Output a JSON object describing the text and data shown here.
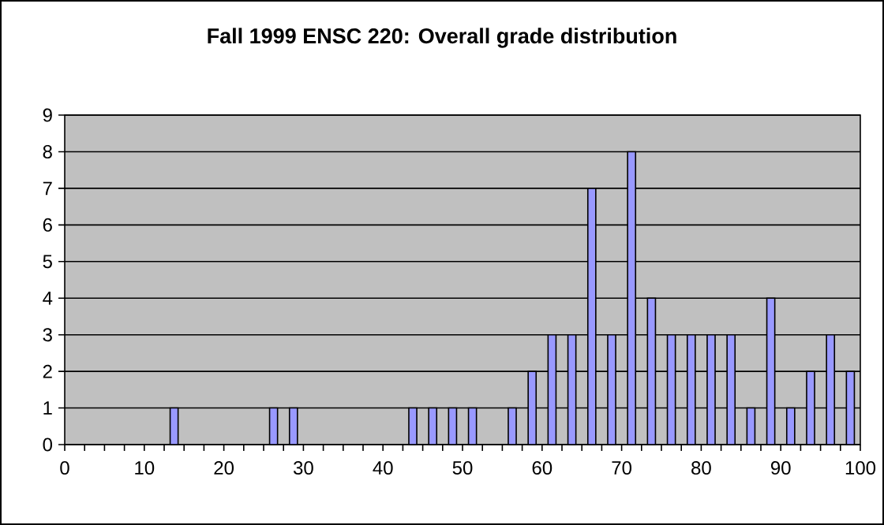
{
  "chart_data": {
    "type": "histogram",
    "title": "Fall 1999 ENSC 220: Overall grade distribution",
    "bins": [
      0,
      2.5,
      5,
      7.5,
      10,
      12.5,
      15,
      17.5,
      20,
      22.5,
      25,
      27.5,
      30,
      32.5,
      35,
      37.5,
      40,
      42.5,
      45,
      47.5,
      50,
      52.5,
      55,
      57.5,
      60,
      62.5,
      65,
      67.5,
      70,
      72.5,
      75,
      77.5,
      80,
      82.5,
      85,
      87.5,
      90,
      92.5,
      95,
      97.5,
      100
    ],
    "values": [
      0,
      0,
      0,
      0,
      0,
      1,
      0,
      0,
      0,
      0,
      1,
      1,
      0,
      0,
      0,
      0,
      0,
      1,
      1,
      1,
      1,
      0,
      1,
      2,
      3,
      3,
      7,
      3,
      8,
      4,
      3,
      3,
      3,
      3,
      1,
      4,
      1,
      2,
      3,
      2
    ],
    "color": "#9999ff",
    "xlim": [
      0,
      100
    ],
    "xticks": [
      0,
      {
        "value": 2.5,
        "label": null
      },
      {
        "value": 5,
        "label": null
      },
      {
        "value": 7.5,
        "label": null
      },
      10,
      {
        "value": 12.5,
        "label": null
      },
      {
        "value": 15,
        "label": null
      },
      {
        "value": 17.5,
        "label": null
      },
      20,
      {
        "value": 22.5,
        "label": null
      },
      {
        "value": 25,
        "label": null
      },
      {
        "value": 27.5,
        "label": null
      },
      30,
      {
        "value": 32.5,
        "label": null
      },
      {
        "value": 35,
        "label": null
      },
      {
        "value": 37.5,
        "label": null
      },
      40,
      {
        "value": 42.5,
        "label": null
      },
      {
        "value": 45,
        "label": null
      },
      {
        "value": 47.5,
        "label": null
      },
      50,
      {
        "value": 52.5,
        "label": null
      },
      {
        "value": 55,
        "label": null
      },
      {
        "value": 57.5,
        "label": null
      },
      60,
      {
        "value": 62.5,
        "label": null
      },
      {
        "value": 65,
        "label": null
      },
      {
        "value": 67.5,
        "label": null
      },
      70,
      {
        "value": 72.5,
        "label": null
      },
      {
        "value": 75,
        "label": null
      },
      {
        "value": 77.5,
        "label": null
      },
      80,
      {
        "value": 82.5,
        "label": null
      },
      {
        "value": 85,
        "label": null
      },
      {
        "value": 87.5,
        "label": null
      },
      90,
      {
        "value": 92.5,
        "label": null
      },
      {
        "value": 95,
        "label": null
      },
      {
        "value": 97.5,
        "label": null
      },
      100
    ],
    "ylim": [
      0,
      9
    ],
    "yticks": [
      0,
      1,
      2,
      3,
      4,
      5,
      6,
      7,
      8,
      9
    ],
    "grid": "y"
  }
}
